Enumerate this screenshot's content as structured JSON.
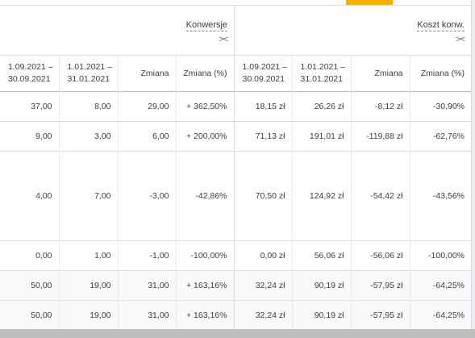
{
  "groups": [
    {
      "title": "Konwersje",
      "expand_icon": "><"
    },
    {
      "title": "Koszt konw.",
      "expand_icon": "><"
    }
  ],
  "columns": [
    {
      "line1": "1.09.2021 –",
      "line2": "30.09.2021"
    },
    {
      "line1": "1.01.2021 –",
      "line2": "31.01.2021"
    },
    {
      "line1": "Zmiana",
      "line2": ""
    },
    {
      "line1": "Zmiana (%)",
      "line2": ""
    },
    {
      "line1": "1.09.2021 –",
      "line2": "30.09.2021"
    },
    {
      "line1": "1.01.2021 –",
      "line2": "31.01.2021"
    },
    {
      "line1": "Zmiana",
      "line2": ""
    },
    {
      "line1": "Zmiana (%)",
      "line2": ""
    }
  ],
  "rows": [
    [
      "37,00",
      "8,00",
      "29,00",
      "+ 362,50%",
      "18,15 zł",
      "26,26 zł",
      "-8,12 zł",
      "-30,90%"
    ],
    [
      "9,00",
      "3,00",
      "6,00",
      "+ 200,00%",
      "71,13 zł",
      "191,01 zł",
      "-119,88 zł",
      "-62,76%"
    ],
    [
      "4,00",
      "7,00",
      "-3,00",
      "-42,86%",
      "70,50 zł",
      "124,92 zł",
      "-54,42 zł",
      "-43,56%"
    ],
    [
      "0,00",
      "1,00",
      "-1,00",
      "-100,00%",
      "0,00 zł",
      "56,06 zł",
      "-56,06 zł",
      "-100,00%"
    ],
    [
      "50,00",
      "19,00",
      "31,00",
      "+ 163,16%",
      "32,24 zł",
      "90,19 zł",
      "-57,95 zł",
      "-64,25%"
    ],
    [
      "50,00",
      "19,00",
      "31,00",
      "+ 163,16%",
      "32,24 zł",
      "90,19 zł",
      "-57,95 zł",
      "-64,25%"
    ]
  ],
  "colors": {
    "accent": "#f9ab00",
    "border": "#dadce0",
    "total_bg": "#f8f9fa"
  }
}
